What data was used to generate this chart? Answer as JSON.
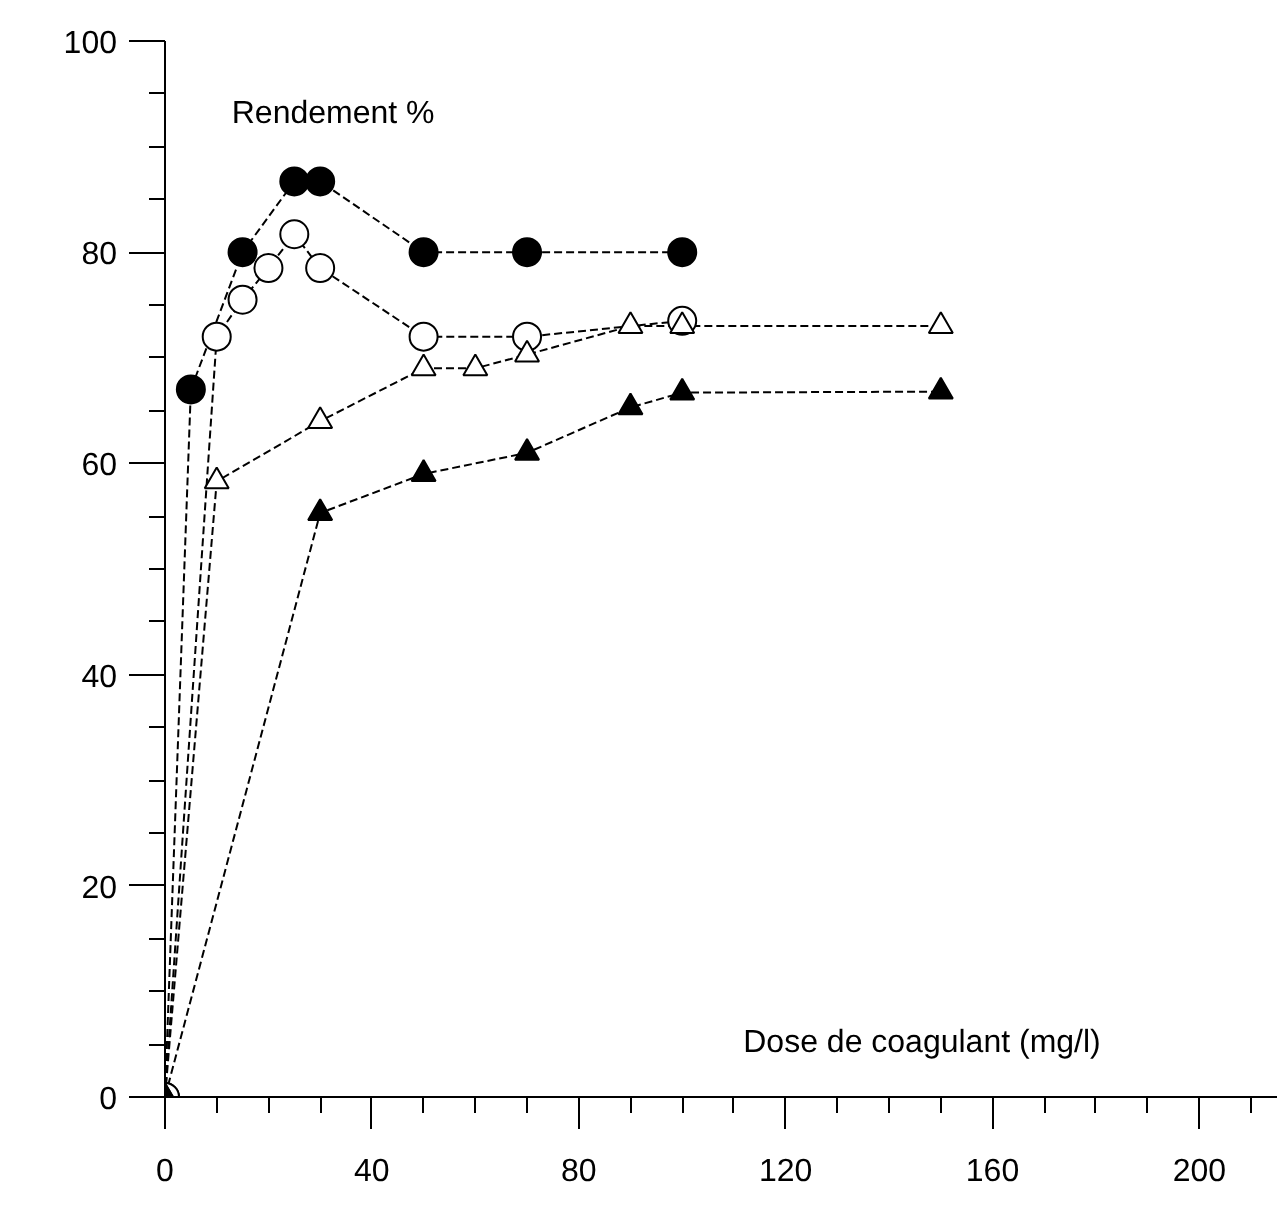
{
  "chart_data": {
    "type": "line",
    "xlabel": "Dose de coagulant (mg/l)",
    "ylabel": "Rendement %",
    "xlim": [
      0,
      215
    ],
    "ylim": [
      0,
      100
    ],
    "xticks": [
      0,
      {
        "value": 10,
        "label": null
      },
      {
        "value": 20,
        "label": null
      },
      {
        "value": 30,
        "label": null
      },
      40,
      {
        "value": 50,
        "label": null
      },
      {
        "value": 60,
        "label": null
      },
      {
        "value": 70,
        "label": null
      },
      80,
      {
        "value": 90,
        "label": null
      },
      {
        "value": 100,
        "label": null
      },
      {
        "value": 110,
        "label": null
      },
      120,
      {
        "value": 130,
        "label": null
      },
      {
        "value": 140,
        "label": null
      },
      {
        "value": 150,
        "label": null
      },
      160,
      {
        "value": 170,
        "label": null
      },
      {
        "value": 180,
        "label": null
      },
      {
        "value": 190,
        "label": null
      },
      200,
      {
        "value": 210,
        "label": null
      }
    ],
    "yticks": [
      0,
      {
        "value": 5,
        "label": null
      },
      {
        "value": 10,
        "label": null
      },
      {
        "value": 15,
        "label": null
      },
      20,
      {
        "value": 25,
        "label": null
      },
      {
        "value": 30,
        "label": null
      },
      {
        "value": 35,
        "label": null
      },
      40,
      {
        "value": 45,
        "label": null
      },
      {
        "value": 50,
        "label": null
      },
      {
        "value": 55,
        "label": null
      },
      60,
      {
        "value": 65,
        "label": null
      },
      {
        "value": 70,
        "label": null
      },
      {
        "value": 75,
        "label": null
      },
      80,
      {
        "value": 85,
        "label": null
      },
      {
        "value": 90,
        "label": null
      },
      {
        "value": 95,
        "label": null
      },
      100
    ],
    "grid": false,
    "line_style": "dashed",
    "series": [
      {
        "color": "#000000",
        "marker": "circle",
        "x": [
          0,
          5,
          15,
          25,
          30,
          50,
          70,
          100
        ],
        "values": [
          0,
          67,
          80,
          86.7,
          86.7,
          80,
          80,
          80
        ]
      },
      {
        "color": "#ffffff",
        "marker": "circle",
        "x": [
          0,
          10,
          15,
          20,
          25,
          30,
          50,
          70,
          100
        ],
        "values": [
          0,
          72,
          75.5,
          78.5,
          81.7,
          78.5,
          72,
          72,
          73.5
        ]
      },
      {
        "color": "#ffffff",
        "marker": "triangle",
        "x": [
          0,
          10,
          30,
          50,
          60,
          70,
          90,
          100,
          150
        ],
        "values": [
          0,
          58.3,
          64,
          69,
          69,
          70.3,
          73,
          73,
          73
        ]
      },
      {
        "color": "#000000",
        "marker": "triangle",
        "x": [
          0,
          30,
          50,
          70,
          90,
          100,
          150
        ],
        "values": [
          0,
          55.3,
          59,
          61,
          65.3,
          66.7,
          66.8
        ]
      }
    ]
  }
}
